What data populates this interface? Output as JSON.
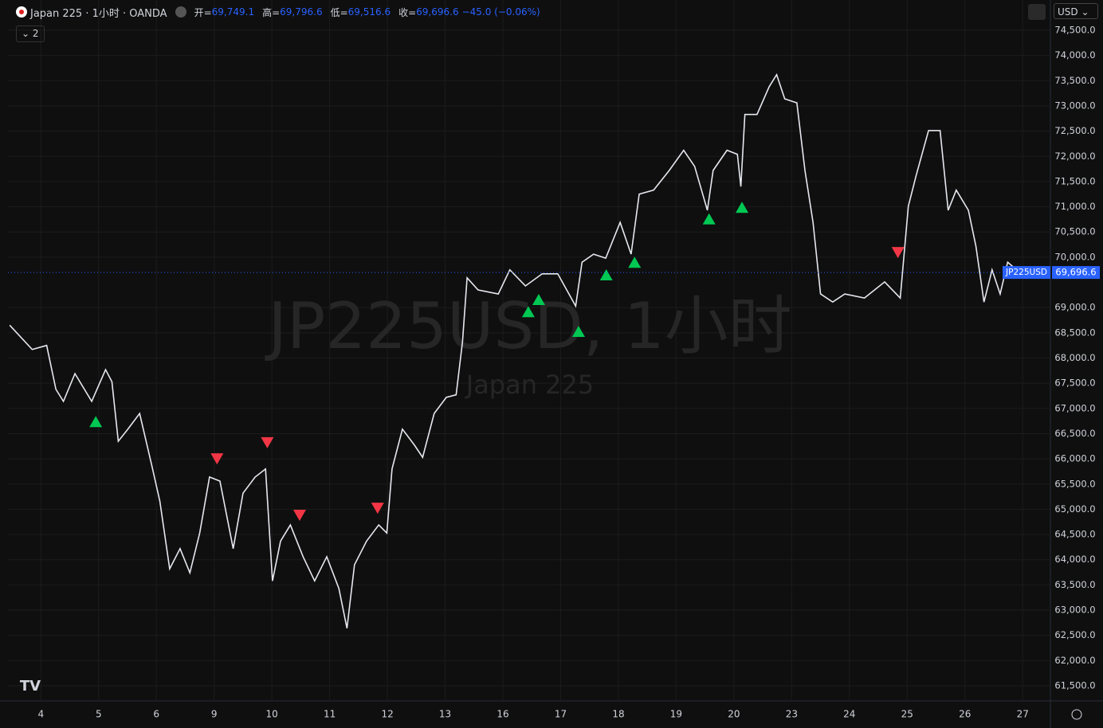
{
  "header": {
    "symbol": "Japan 225 · 1小时 · OANDA",
    "open_label": "开=",
    "open": "69,749.1",
    "high_label": "高=",
    "high": "69,796.6",
    "low_label": "低=",
    "low": "69,516.6",
    "close_label": "收=",
    "close": "69,696.6",
    "change": "−45.0 (−0.06%)",
    "badge": "2",
    "currency": "USD"
  },
  "chart_data": {
    "type": "line",
    "watermark": "JP225USD, 1小时",
    "watermark_sub": "Japan 225",
    "grid": true,
    "xlim": [
      -0.57,
      17.48
    ],
    "ylim": [
      61200,
      75100
    ],
    "xticks": [
      {
        "value": 0,
        "label": "4"
      },
      {
        "value": 1,
        "label": "5"
      },
      {
        "value": 2,
        "label": "6"
      },
      {
        "value": 3,
        "label": "9"
      },
      {
        "value": 4,
        "label": "10"
      },
      {
        "value": 5,
        "label": "11"
      },
      {
        "value": 6,
        "label": "12"
      },
      {
        "value": 7,
        "label": "13"
      },
      {
        "value": 8,
        "label": "16"
      },
      {
        "value": 9,
        "label": "17"
      },
      {
        "value": 10,
        "label": "18"
      },
      {
        "value": 11,
        "label": "19"
      },
      {
        "value": 12,
        "label": "20"
      },
      {
        "value": 13,
        "label": "23"
      },
      {
        "value": 14,
        "label": "24"
      },
      {
        "value": 15,
        "label": "25"
      },
      {
        "value": 16,
        "label": "26"
      },
      {
        "value": 17,
        "label": "27"
      }
    ],
    "yticks": [
      {
        "value": 74500,
        "label": "74,500.0"
      },
      {
        "value": 74000,
        "label": "74,000.0"
      },
      {
        "value": 73500,
        "label": "73,500.0"
      },
      {
        "value": 73000,
        "label": "73,000.0"
      },
      {
        "value": 72500,
        "label": "72,500.0"
      },
      {
        "value": 72000,
        "label": "72,000.0"
      },
      {
        "value": 71500,
        "label": "71,500.0"
      },
      {
        "value": 71000,
        "label": "71,000.0"
      },
      {
        "value": 70500,
        "label": "70,500.0"
      },
      {
        "value": 70000,
        "label": "70,000.0"
      },
      {
        "value": 69000,
        "label": "69,000.0"
      },
      {
        "value": 68500,
        "label": "68,500.0"
      },
      {
        "value": 68000,
        "label": "68,000.0"
      },
      {
        "value": 67500,
        "label": "67,500.0"
      },
      {
        "value": 67000,
        "label": "67,000.0"
      },
      {
        "value": 66500,
        "label": "66,500.0"
      },
      {
        "value": 66000,
        "label": "66,000.0"
      },
      {
        "value": 65500,
        "label": "65,500.0"
      },
      {
        "value": 65000,
        "label": "65,000.0"
      },
      {
        "value": 64500,
        "label": "64,500.0"
      },
      {
        "value": 64000,
        "label": "64,000.0"
      },
      {
        "value": 63500,
        "label": "63,500.0"
      },
      {
        "value": 63000,
        "label": "63,000.0"
      },
      {
        "value": 62500,
        "label": "62,500.0"
      },
      {
        "value": 62000,
        "label": "62,000.0"
      },
      {
        "value": 61500,
        "label": "61,500.0"
      }
    ],
    "last_price": {
      "value": 69696.6,
      "label": "69,696.6",
      "symbol": "JP225USD",
      "color": "#2962ff"
    },
    "series": [
      {
        "color": "#e6e8ef",
        "x": [
          -0.54,
          -0.15,
          0.1,
          0.26,
          0.39,
          0.59,
          0.88,
          1.12,
          1.23,
          1.34,
          1.5,
          1.71,
          1.92,
          2.06,
          2.23,
          2.41,
          2.58,
          2.75,
          2.92,
          3.1,
          3.33,
          3.5,
          3.71,
          3.89,
          4.01,
          4.15,
          4.32,
          4.54,
          4.74,
          4.95,
          5.16,
          5.3,
          5.43,
          5.64,
          5.85,
          5.99,
          6.08,
          6.26,
          6.47,
          6.61,
          6.81,
          7.02,
          7.19,
          7.3,
          7.38,
          7.57,
          7.92,
          8.12,
          8.39,
          8.68,
          8.95,
          9.26,
          9.37,
          9.57,
          9.78,
          10.03,
          10.22,
          10.36,
          10.61,
          10.88,
          11.13,
          11.32,
          11.54,
          11.64,
          11.88,
          12.06,
          12.12,
          12.19,
          12.4,
          12.61,
          12.74,
          12.88,
          13.09,
          13.23,
          13.37,
          13.5,
          13.71,
          13.92,
          14.26,
          14.61,
          14.88,
          15.02,
          15.16,
          15.37,
          15.57,
          15.71,
          15.85,
          16.06,
          16.19,
          16.33,
          16.47,
          16.61,
          16.74,
          16.95
        ],
        "values": [
          68650,
          68170,
          68250,
          67380,
          67140,
          67690,
          67140,
          67770,
          67530,
          66350,
          66580,
          66900,
          65870,
          65160,
          63820,
          64220,
          63740,
          64530,
          65640,
          65560,
          64220,
          65320,
          65640,
          65800,
          63580,
          64370,
          64690,
          64060,
          63580,
          64060,
          63430,
          62640,
          63900,
          64370,
          64690,
          64530,
          65800,
          66590,
          66270,
          66030,
          66900,
          67220,
          67270,
          68320,
          69590,
          69350,
          69270,
          69750,
          69430,
          69670,
          69670,
          69030,
          69900,
          70060,
          69980,
          70690,
          70060,
          71250,
          71330,
          71720,
          72120,
          71800,
          70930,
          71720,
          72120,
          72040,
          71400,
          72830,
          72830,
          73380,
          73620,
          73140,
          73060,
          71720,
          70690,
          69270,
          69110,
          69270,
          69190,
          69510,
          69190,
          71010,
          71640,
          72510,
          72510,
          70930,
          71330,
          70930,
          70220,
          69110,
          69750,
          69270,
          69900,
          69697
        ]
      }
    ],
    "signals": [
      {
        "name": "buy",
        "color": "#00c853",
        "x": [
          0.95,
          8.44,
          8.62,
          9.31,
          9.79,
          10.28,
          11.57,
          12.14
        ],
        "values": [
          66740,
          68920,
          69160,
          68530,
          69650,
          69900,
          70760,
          70990
        ]
      },
      {
        "name": "sell",
        "color": "#f23645",
        "x": [
          3.05,
          3.92,
          4.48,
          5.83,
          14.84
        ],
        "values": [
          66000,
          66320,
          64880,
          65020,
          70090
        ]
      }
    ]
  }
}
